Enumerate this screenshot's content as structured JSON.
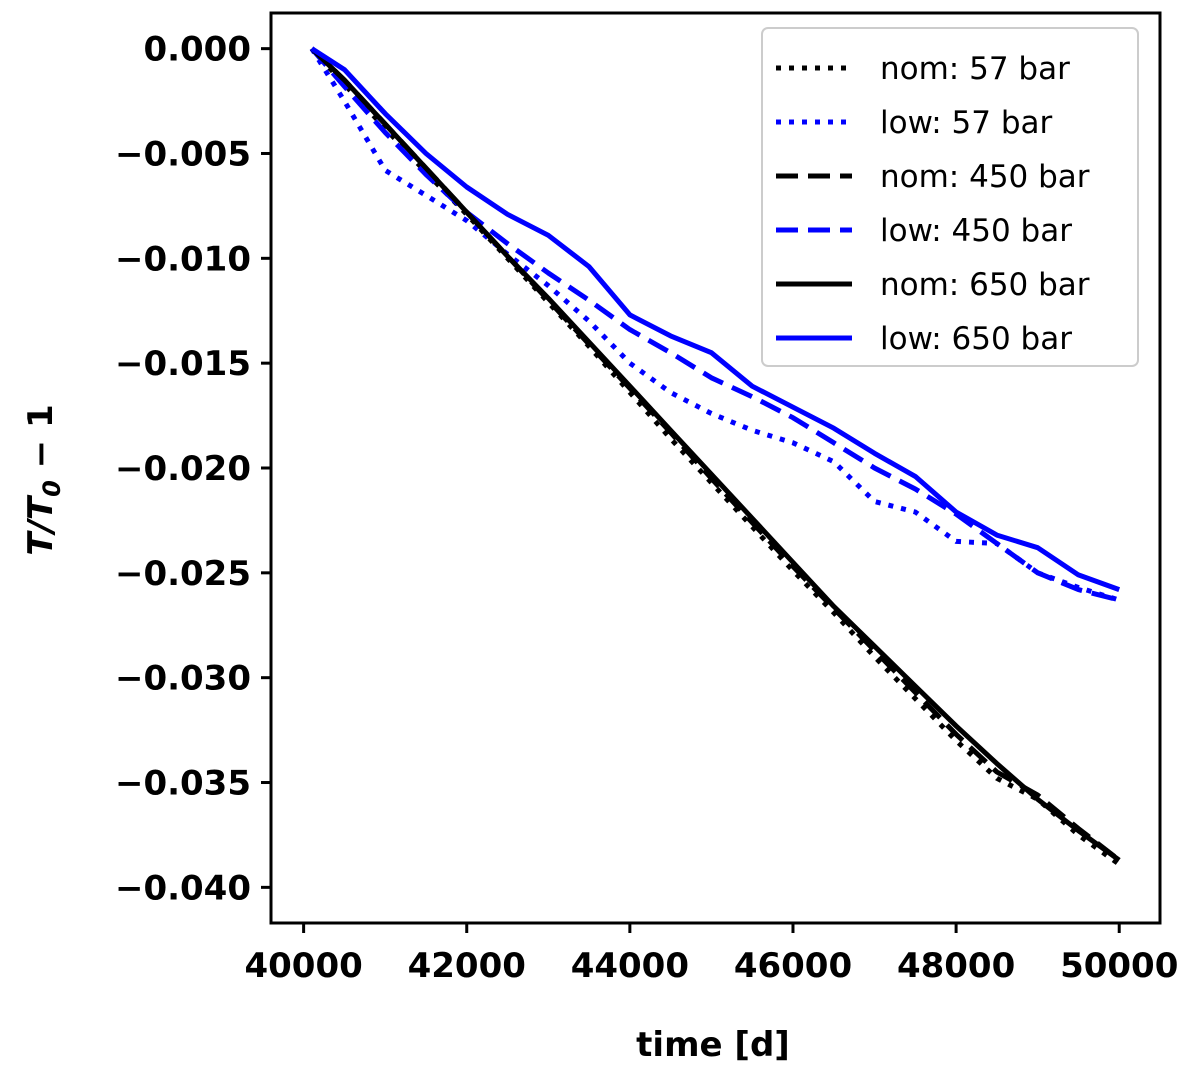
{
  "chart_data": {
    "type": "line",
    "xlabel": "time [d]",
    "ylabel_parts": {
      "main": "T/T",
      "sub": "0",
      "tail": " − 1"
    },
    "xlim": [
      39600,
      50500
    ],
    "ylim": [
      -0.0417,
      0.0017
    ],
    "xticks": [
      40000,
      42000,
      44000,
      46000,
      48000,
      50000
    ],
    "xtick_labels": [
      "40000",
      "42000",
      "44000",
      "46000",
      "48000",
      "50000"
    ],
    "yticks": [
      0,
      -0.005,
      -0.01,
      -0.015,
      -0.02,
      -0.025,
      -0.03,
      -0.035,
      -0.04
    ],
    "ytick_labels": [
      "0.000",
      "−0.005",
      "−0.010",
      "−0.015",
      "−0.020",
      "−0.025",
      "−0.030",
      "−0.035",
      "−0.040"
    ],
    "grid": false,
    "legend_position": "top-right",
    "series": [
      {
        "name": "nom: 57 bar",
        "color": "#000000",
        "style": "dotted",
        "x": [
          40100,
          40500,
          41000,
          41500,
          42000,
          42500,
          43000,
          43500,
          44000,
          44500,
          45000,
          45500,
          46000,
          46500,
          47000,
          47500,
          48000,
          48500,
          49000,
          49500,
          50000
        ],
        "y": [
          0,
          -0.0017,
          -0.0038,
          -0.0059,
          -0.0079,
          -0.01,
          -0.0121,
          -0.0142,
          -0.0164,
          -0.0186,
          -0.0207,
          -0.0228,
          -0.0249,
          -0.0269,
          -0.029,
          -0.031,
          -0.033,
          -0.0348,
          -0.0358,
          -0.0375,
          -0.0389
        ]
      },
      {
        "name": "low: 57 bar",
        "color": "#0000ff",
        "style": "dotted",
        "x": [
          40100,
          40500,
          41000,
          41500,
          42000,
          42500,
          43000,
          43500,
          44000,
          44500,
          45000,
          45500,
          46000,
          46500,
          47000,
          47500,
          48000,
          48500,
          49000,
          49500,
          50000
        ],
        "y": [
          0,
          -0.0025,
          -0.0058,
          -0.007,
          -0.0082,
          -0.0098,
          -0.0113,
          -0.013,
          -0.015,
          -0.0164,
          -0.0174,
          -0.0182,
          -0.0188,
          -0.0197,
          -0.0216,
          -0.0221,
          -0.0235,
          -0.0236,
          -0.025,
          -0.0257,
          -0.0263
        ]
      },
      {
        "name": "nom: 450 bar",
        "color": "#000000",
        "style": "dashed",
        "x": [
          40100,
          40500,
          41000,
          41500,
          42000,
          42500,
          43000,
          43500,
          44000,
          44500,
          45000,
          45500,
          46000,
          46500,
          47000,
          47500,
          48000,
          48500,
          49000,
          49500,
          50000
        ],
        "y": [
          0,
          -0.0015,
          -0.0036,
          -0.0057,
          -0.0078,
          -0.0099,
          -0.012,
          -0.0141,
          -0.0162,
          -0.0183,
          -0.0205,
          -0.0226,
          -0.0247,
          -0.0267,
          -0.0287,
          -0.0307,
          -0.0327,
          -0.0345,
          -0.0356,
          -0.0372,
          -0.0387
        ]
      },
      {
        "name": "low: 450 bar",
        "color": "#0000ff",
        "style": "dashed",
        "x": [
          40100,
          40500,
          41000,
          41500,
          42000,
          42500,
          43000,
          43500,
          44000,
          44500,
          45000,
          45500,
          46000,
          46500,
          47000,
          47500,
          48000,
          48500,
          49000,
          49500,
          50000
        ],
        "y": [
          0,
          -0.0018,
          -0.004,
          -0.006,
          -0.0078,
          -0.0093,
          -0.0107,
          -0.012,
          -0.0134,
          -0.0145,
          -0.0157,
          -0.0166,
          -0.0176,
          -0.0188,
          -0.02,
          -0.021,
          -0.0222,
          -0.0236,
          -0.025,
          -0.0258,
          -0.0263
        ]
      },
      {
        "name": "nom: 650 bar",
        "color": "#000000",
        "style": "solid",
        "x": [
          40100,
          40500,
          41000,
          41500,
          42000,
          42500,
          43000,
          43500,
          44000,
          44500,
          45000,
          45500,
          46000,
          46500,
          47000,
          47500,
          48000,
          48500,
          49000,
          49500,
          50000
        ],
        "y": [
          0,
          -0.0015,
          -0.0036,
          -0.0057,
          -0.0078,
          -0.0099,
          -0.0119,
          -0.014,
          -0.0161,
          -0.0182,
          -0.0203,
          -0.0224,
          -0.0245,
          -0.0266,
          -0.0285,
          -0.0304,
          -0.0323,
          -0.0341,
          -0.0358,
          -0.0373,
          -0.0387
        ]
      },
      {
        "name": "low: 650 bar",
        "color": "#0000ff",
        "style": "solid",
        "x": [
          40100,
          40500,
          41000,
          41500,
          42000,
          42500,
          43000,
          43500,
          44000,
          44500,
          45000,
          45500,
          46000,
          46500,
          47000,
          47500,
          48000,
          48500,
          49000,
          49500,
          50000
        ],
        "y": [
          0,
          -0.001,
          -0.0031,
          -0.005,
          -0.0066,
          -0.0079,
          -0.0089,
          -0.0104,
          -0.0127,
          -0.0137,
          -0.0145,
          -0.0161,
          -0.0171,
          -0.0181,
          -0.0193,
          -0.0204,
          -0.0221,
          -0.0232,
          -0.0238,
          -0.0251,
          -0.0258
        ]
      }
    ]
  }
}
